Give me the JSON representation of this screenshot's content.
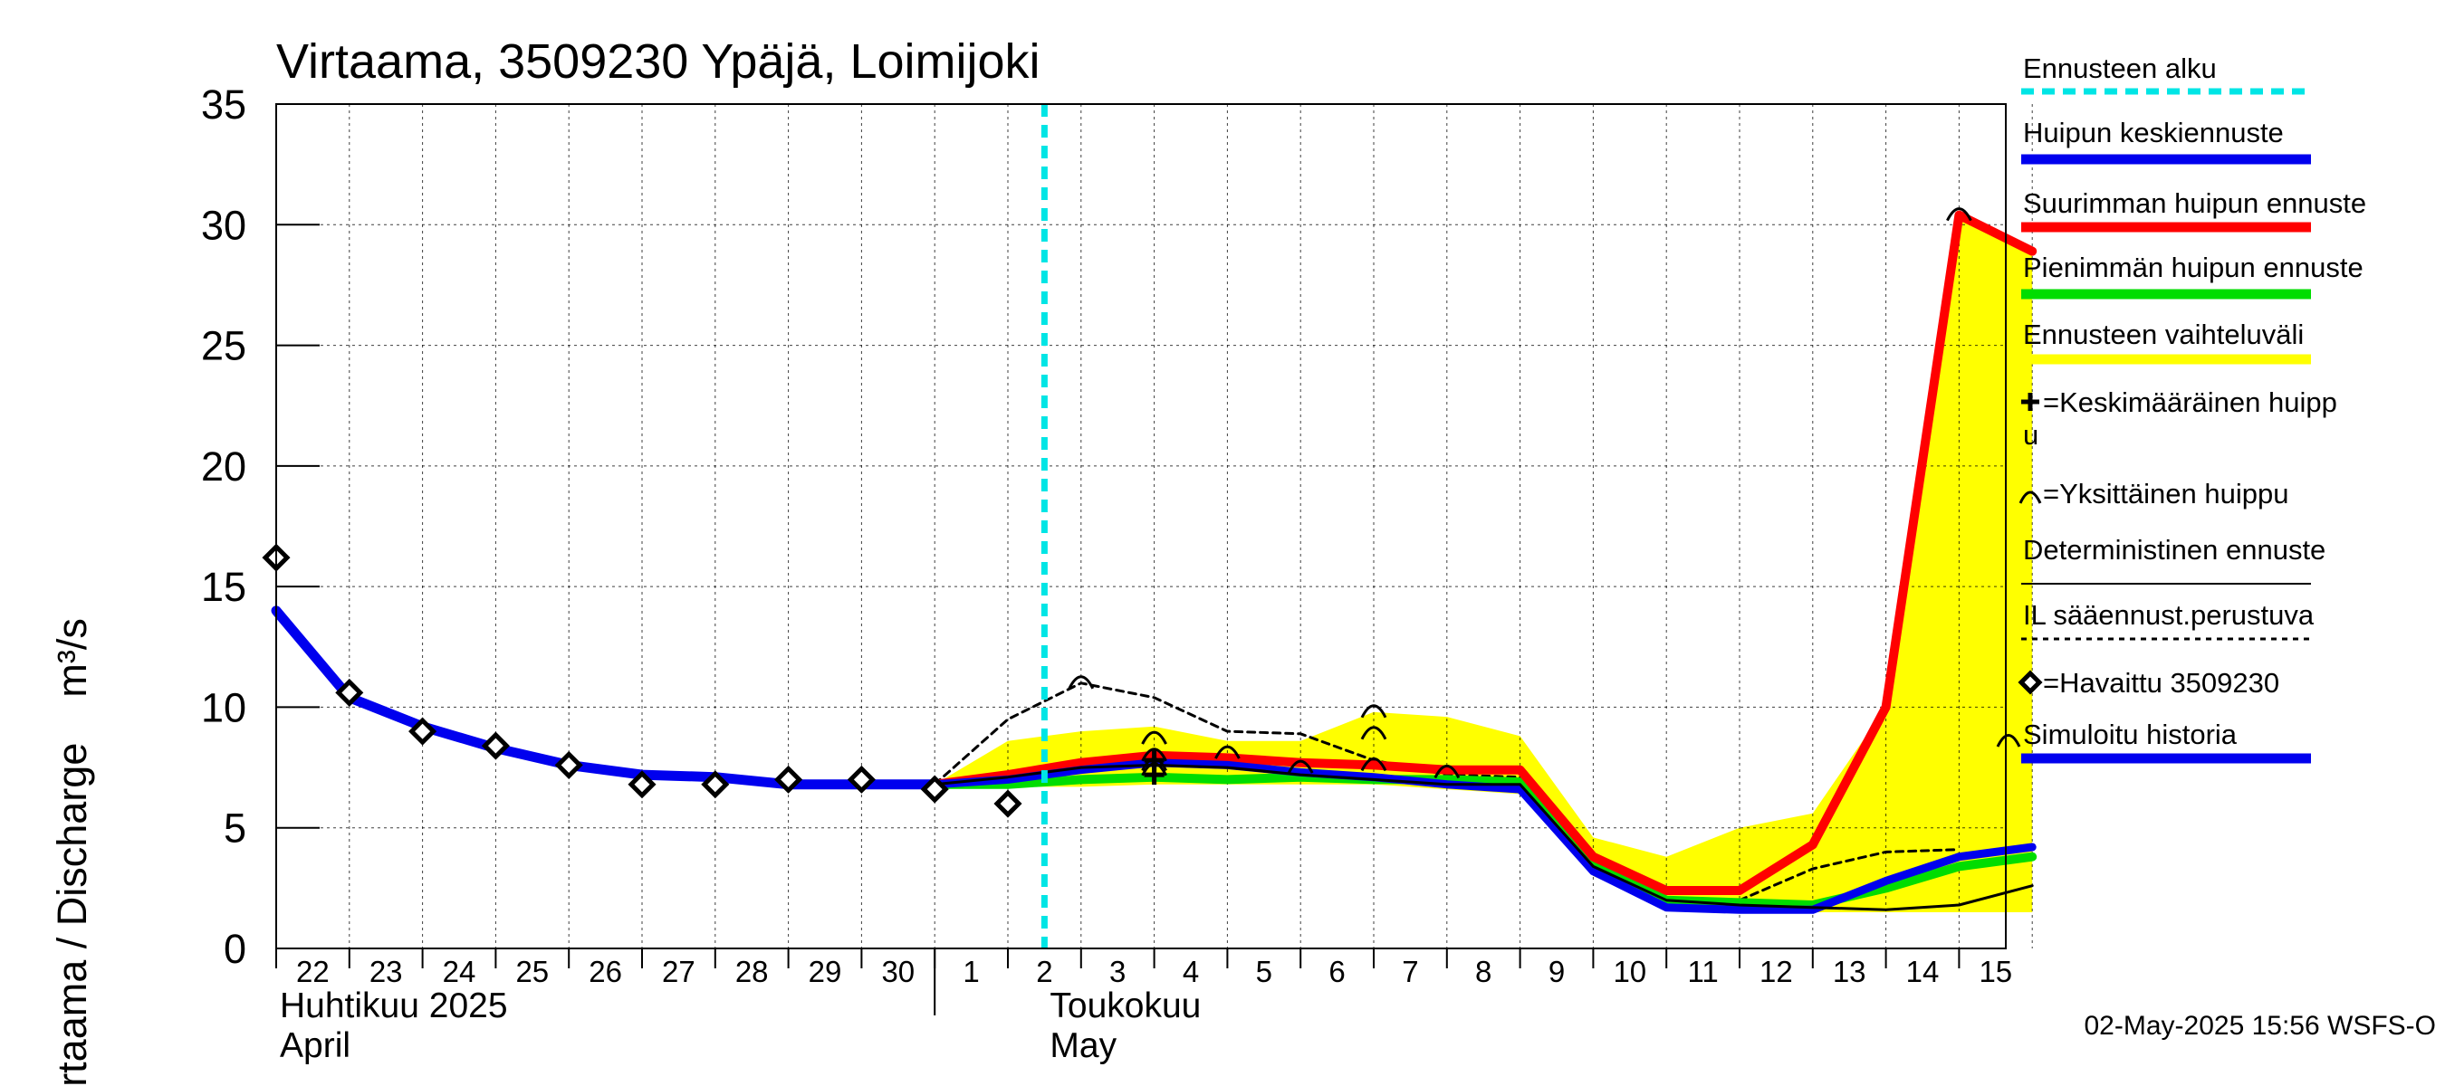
{
  "chart_data": {
    "type": "line",
    "title": "Virtaama, 3509230 Ypäjä, Loimijoki",
    "ylabel": "Virtaama / Discharge",
    "yunit": "m³/s",
    "ylim": [
      0,
      35
    ],
    "yticks": [
      "0",
      "5",
      "10",
      "15",
      "20",
      "25",
      "30",
      "35"
    ],
    "grid": true,
    "legend_position": "right",
    "x_day_labels": [
      "22",
      "23",
      "24",
      "25",
      "26",
      "27",
      "28",
      "29",
      "30",
      "1",
      "2",
      "3",
      "4",
      "5",
      "6",
      "7",
      "8",
      "9",
      "10",
      "11",
      "12",
      "13",
      "14",
      "15"
    ],
    "months": [
      {
        "fi": "Huhtikuu  2025",
        "en": "April"
      },
      {
        "fi": "Toukokuu",
        "en": "May"
      }
    ],
    "forecast_start_day": 10.5,
    "series": [
      {
        "name": "Simuloitu historia",
        "color": "#0000ee",
        "points": [
          [
            0,
            14.0
          ],
          [
            1,
            10.4
          ],
          [
            2,
            9.2
          ],
          [
            3,
            8.3
          ],
          [
            4,
            7.6
          ],
          [
            5,
            7.2
          ],
          [
            6,
            7.1
          ],
          [
            7,
            6.8
          ],
          [
            8,
            6.8
          ],
          [
            9,
            6.8
          ]
        ]
      },
      {
        "name": "Huipun keskiennuste",
        "color": "#0000ee",
        "points": [
          [
            9,
            6.8
          ],
          [
            10,
            7.0
          ],
          [
            11,
            7.4
          ],
          [
            12,
            7.7
          ],
          [
            13,
            7.6
          ],
          [
            14,
            7.3
          ],
          [
            15,
            7.1
          ],
          [
            16,
            6.8
          ],
          [
            17,
            6.6
          ],
          [
            18,
            3.2
          ],
          [
            19,
            1.7
          ],
          [
            20,
            1.6
          ],
          [
            21,
            1.6
          ],
          [
            22,
            2.8
          ],
          [
            23,
            3.8
          ],
          [
            24,
            4.2
          ]
        ]
      },
      {
        "name": "Suurimman huipun ennuste",
        "color": "#ff0000",
        "points": [
          [
            9,
            6.8
          ],
          [
            10,
            7.2
          ],
          [
            11,
            7.7
          ],
          [
            12,
            8.0
          ],
          [
            13,
            7.9
          ],
          [
            14,
            7.7
          ],
          [
            15,
            7.6
          ],
          [
            16,
            7.4
          ],
          [
            17,
            7.4
          ],
          [
            18,
            3.8
          ],
          [
            19,
            2.4
          ],
          [
            20,
            2.4
          ],
          [
            21,
            4.3
          ],
          [
            22,
            10.0
          ],
          [
            23,
            30.4
          ],
          [
            24,
            28.9
          ]
        ]
      },
      {
        "name": "Pienimmän huipun ennuste",
        "color": "#00dd00",
        "points": [
          [
            9,
            6.8
          ],
          [
            10,
            6.8
          ],
          [
            11,
            7.0
          ],
          [
            12,
            7.1
          ],
          [
            13,
            7.0
          ],
          [
            14,
            7.1
          ],
          [
            15,
            7.0
          ],
          [
            16,
            7.0
          ],
          [
            17,
            6.9
          ],
          [
            18,
            3.4
          ],
          [
            19,
            2.0
          ],
          [
            20,
            1.9
          ],
          [
            21,
            1.8
          ],
          [
            22,
            2.5
          ],
          [
            23,
            3.4
          ],
          [
            24,
            3.8
          ]
        ]
      },
      {
        "name": "Deterministinen ennuste",
        "color": "#000000",
        "points": [
          [
            9,
            6.8
          ],
          [
            10,
            7.1
          ],
          [
            11,
            7.5
          ],
          [
            12,
            7.6
          ],
          [
            13,
            7.5
          ],
          [
            14,
            7.2
          ],
          [
            15,
            7.0
          ],
          [
            16,
            6.8
          ],
          [
            17,
            6.8
          ],
          [
            18,
            3.4
          ],
          [
            19,
            2.0
          ],
          [
            20,
            1.8
          ],
          [
            21,
            1.7
          ],
          [
            22,
            1.6
          ],
          [
            23,
            1.8
          ],
          [
            24,
            2.6
          ]
        ]
      },
      {
        "name": "IL sääennust.perustuva",
        "color": "#000000",
        "points": [
          [
            9,
            6.8
          ],
          [
            10,
            9.5
          ],
          [
            11,
            11.0
          ],
          [
            12,
            10.4
          ],
          [
            13,
            9.0
          ],
          [
            14,
            8.9
          ],
          [
            15,
            7.8
          ],
          [
            16,
            7.2
          ],
          [
            17,
            7.1
          ],
          [
            18,
            3.6
          ],
          [
            19,
            2.1
          ],
          [
            20,
            2.0
          ],
          [
            21,
            3.3
          ],
          [
            22,
            4.0
          ],
          [
            23,
            4.1
          ]
        ]
      },
      {
        "name": "Ennusteen vaihteluväli",
        "color": "#ffff00",
        "upper": [
          [
            9,
            6.8
          ],
          [
            10,
            8.6
          ],
          [
            11,
            9.0
          ],
          [
            12,
            9.2
          ],
          [
            13,
            8.6
          ],
          [
            14,
            8.6
          ],
          [
            15,
            9.8
          ],
          [
            16,
            9.6
          ],
          [
            17,
            8.8
          ],
          [
            18,
            4.6
          ],
          [
            19,
            3.8
          ],
          [
            20,
            5.0
          ],
          [
            21,
            5.6
          ],
          [
            22,
            10.0
          ],
          [
            23,
            30.4
          ],
          [
            24,
            28.9
          ]
        ],
        "lower": [
          [
            24,
            1.5
          ],
          [
            23,
            1.5
          ],
          [
            22,
            1.5
          ],
          [
            21,
            1.5
          ],
          [
            20,
            1.6
          ],
          [
            19,
            1.7
          ],
          [
            18,
            3.0
          ],
          [
            17,
            6.4
          ],
          [
            16,
            6.6
          ],
          [
            15,
            6.8
          ],
          [
            14,
            6.8
          ],
          [
            13,
            6.8
          ],
          [
            12,
            6.8
          ],
          [
            11,
            6.7
          ],
          [
            10,
            6.7
          ],
          [
            9,
            6.8
          ]
        ]
      },
      {
        "name": "Havaittu 3509230",
        "color": "#000000",
        "points": [
          [
            0,
            16.2
          ],
          [
            1,
            10.6
          ],
          [
            2,
            9.0
          ],
          [
            3,
            8.4
          ],
          [
            4,
            7.6
          ],
          [
            5,
            6.8
          ],
          [
            6,
            6.8
          ],
          [
            7,
            7.0
          ],
          [
            8,
            7.0
          ],
          [
            9,
            6.6
          ],
          [
            10,
            6.0
          ]
        ]
      },
      {
        "name": "Yksittäinen huippu",
        "points": [
          [
            11,
            11.0
          ],
          [
            12,
            7.6
          ],
          [
            12,
            8.7
          ],
          [
            12,
            8.0
          ],
          [
            12,
            7.4
          ],
          [
            13,
            8.1
          ],
          [
            14,
            7.5
          ],
          [
            15,
            9.8
          ],
          [
            15,
            8.9
          ],
          [
            15,
            7.6
          ],
          [
            16,
            7.3
          ],
          [
            23,
            30.4
          ]
        ]
      },
      {
        "name": "Keskimääräinen huippu",
        "points": [
          [
            12,
            7.8
          ],
          [
            12,
            7.2
          ]
        ]
      }
    ],
    "legend": [
      {
        "label": "Ennusteen alku",
        "style": "dashed",
        "color": "#00e5e5"
      },
      {
        "label": "Huipun keskiennuste",
        "style": "thick",
        "color": "#0000ee"
      },
      {
        "label": "Suurimman huipun ennuste",
        "style": "thick",
        "color": "#ff0000"
      },
      {
        "label": "Pienimmän huipun ennuste",
        "style": "thick",
        "color": "#00dd00"
      },
      {
        "label": "Ennusteen vaihteluväli",
        "style": "thick",
        "color": "#ffff00"
      },
      {
        "label": "=Keskimääräinen huipp",
        "label2": "u",
        "style": "plus-marker",
        "color": "#000000"
      },
      {
        "label": "=Yksittäinen huippu",
        "style": "arc-marker",
        "color": "#000000"
      },
      {
        "label": "Deterministinen ennuste",
        "style": "thin",
        "color": "#000000"
      },
      {
        "label": "IL sääennust.perustuva",
        "style": "dotted",
        "color": "#000000"
      },
      {
        "label": "=Havaittu 3509230",
        "style": "diamond-marker",
        "color": "#000000"
      },
      {
        "label": "Simuloitu historia",
        "style": "thick-arc",
        "color": "#0000ee"
      }
    ]
  },
  "footer": {
    "timestamp": "02-May-2025 15:56 WSFS-O"
  }
}
